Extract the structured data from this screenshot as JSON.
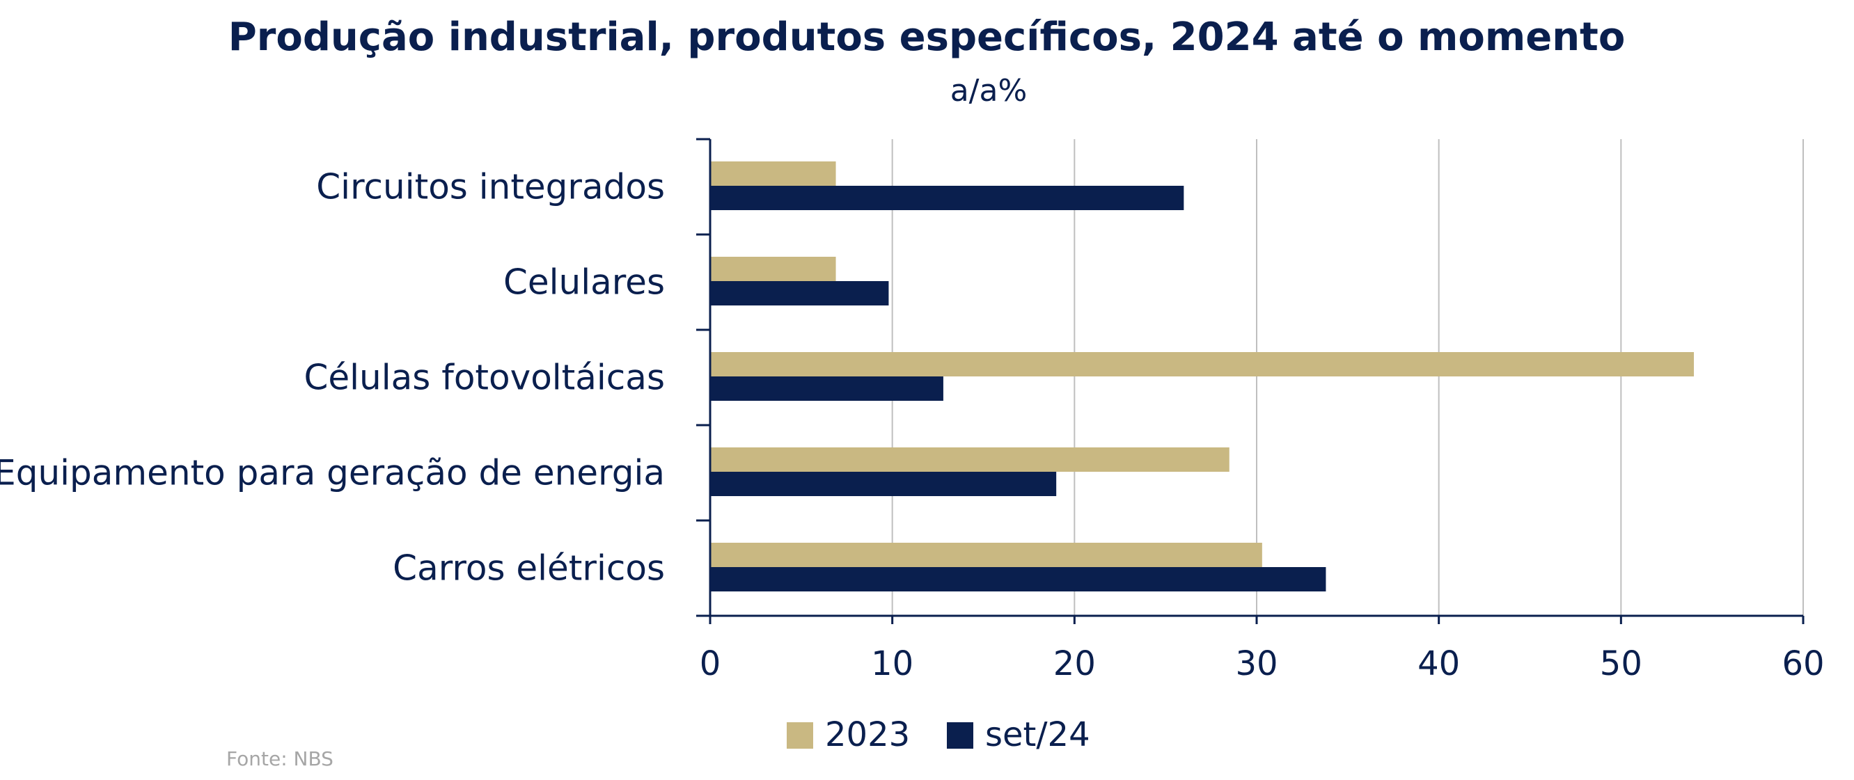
{
  "chart_data": {
    "type": "bar",
    "orientation": "horizontal",
    "title": "Produção industrial, produtos específicos, 2024 até o momento",
    "subtitle": "a/a%",
    "categories": [
      "Circuitos integrados",
      "Celulares",
      "Células fotovoltáicas",
      "Equipamento para geração de energia",
      "Carros elétricos"
    ],
    "series": [
      {
        "name": "2023",
        "color": "#c9b882",
        "values": [
          6.9,
          6.9,
          54.0,
          28.5,
          30.3
        ]
      },
      {
        "name": "set/24",
        "color": "#0a1f4e",
        "values": [
          26.0,
          9.8,
          12.8,
          19.0,
          33.8
        ]
      }
    ],
    "xlim": [
      0,
      60
    ],
    "xticks": [
      0,
      10,
      20,
      30,
      40,
      50,
      60
    ],
    "grid": "vertical",
    "legend_position": "bottom",
    "source": "Fonte: NBS"
  }
}
